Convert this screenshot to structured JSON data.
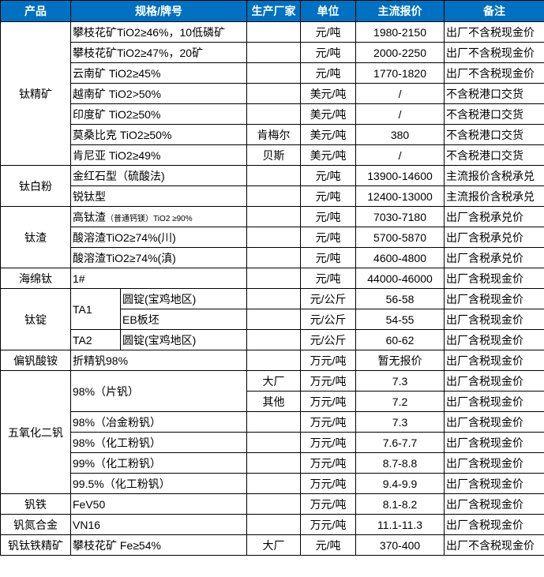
{
  "header": {
    "product": "产品",
    "spec": "规格/牌号",
    "maker": "生产厂家",
    "unit": "单位",
    "price": "主流报价",
    "note": "备注"
  },
  "header_color": "#0070C0",
  "groups": [
    {
      "product": "钛精矿",
      "rows": [
        {
          "spec": "攀枝花矿TiO2≥46%，10低磷矿",
          "maker": "",
          "unit": "元/吨",
          "price": "1980-2150",
          "note": "出厂不含税现金价"
        },
        {
          "spec": "攀枝花矿TiO2≥47%，20矿",
          "maker": "",
          "unit": "元/吨",
          "price": "2000-2250",
          "note": "出厂不含税现金价"
        },
        {
          "spec": "云南矿 TiO2≥45%",
          "maker": "",
          "unit": "元/吨",
          "price": "1770-1820",
          "note": "出厂不含税现金价"
        },
        {
          "spec": "越南矿 TiO2>50%",
          "maker": "",
          "unit": "美元/吨",
          "price": "/",
          "note": "不含税港口交货"
        },
        {
          "spec": "印度矿 TiO2≥50%",
          "maker": "",
          "unit": "美元/吨",
          "price": "/",
          "note": "不含税港口交货"
        },
        {
          "spec": "莫桑比克 TiO2≥50%",
          "maker": "肯梅尔",
          "unit": "美元/吨",
          "price": "380",
          "note": "不含税港口交货"
        },
        {
          "spec": "肯尼亚 TiO2≥49%",
          "maker": "贝斯",
          "unit": "美元/吨",
          "price": "/",
          "note": "不含税港口交货"
        }
      ]
    },
    {
      "product": "钛白粉",
      "rows": [
        {
          "spec": "金红石型（硫酸法)",
          "maker": "",
          "unit": "元/吨",
          "price": "13900-14600",
          "note": "主流报价含税承兑"
        },
        {
          "spec": "锐钛型",
          "maker": "",
          "unit": "元/吨",
          "price": "12400-13000",
          "note": "主流报价含税承兑"
        }
      ]
    },
    {
      "product": "钛渣",
      "rows": [
        {
          "spec": "高钛渣",
          "spec_small": "（普通钙镁）TiO2 ≥90%",
          "maker": "",
          "unit": "元/吨",
          "price": "7030-7180",
          "note": "出厂含税承兑价"
        },
        {
          "spec": "酸溶渣TiO2≥74%(川)",
          "maker": "",
          "unit": "元/吨",
          "price": "5700-5870",
          "note": "出厂含税承兑价"
        },
        {
          "spec": "酸溶渣TiO2≥74%(滇)",
          "maker": "",
          "unit": "元/吨",
          "price": "4600-4800",
          "note": "出厂含税承兑价"
        }
      ]
    },
    {
      "product": "海绵钛",
      "rows": [
        {
          "spec": "1#",
          "maker": "",
          "unit": "元/吨",
          "price": "44000-46000",
          "note": "出厂含税现金价"
        }
      ]
    },
    {
      "product": "钛锭",
      "rows": [
        {
          "grade": "TA1",
          "spec": "圆锭(宝鸡地区)",
          "maker": "",
          "unit": "元/公斤",
          "price": "56-58",
          "note": "出厂含税现金价"
        },
        {
          "grade": null,
          "spec": "EB板坯",
          "maker": "",
          "unit": "元/公斤",
          "price": "54-55",
          "note": "出厂含税现金价"
        },
        {
          "grade": "TA2",
          "spec": "圆锭(宝鸡地区)",
          "maker": "",
          "unit": "元/公斤",
          "price": "60-62",
          "note": "出厂含税现金价"
        }
      ]
    },
    {
      "product": "偏钒酸铵",
      "rows": [
        {
          "spec": "折精钒98%",
          "maker": "",
          "unit": "万元/吨",
          "price": "暂无报价",
          "note": "出厂含税现金价"
        }
      ]
    },
    {
      "product": "五氧化二钒",
      "rows": [
        {
          "spec": "98%（片钒）",
          "maker": "大厂",
          "unit": "万元/吨",
          "price": "7.3",
          "note": "出厂含税现金价"
        },
        {
          "spec": null,
          "maker": "其他",
          "unit": "万元/吨",
          "price": "7.2",
          "note": "出厂含税现金价"
        },
        {
          "spec": "98%（冶金粉钒）",
          "maker": "",
          "unit": "万元/吨",
          "price": "7.3",
          "note": "出厂含税现金价"
        },
        {
          "spec": "98%（化工粉钒）",
          "maker": "",
          "unit": "万元/吨",
          "price": "7.6-7.7",
          "note": "出厂含税现金价"
        },
        {
          "spec": "99%（化工粉钒）",
          "maker": "",
          "unit": "万元/吨",
          "price": "8.7-8.8",
          "note": "出厂含税现金价"
        },
        {
          "spec": "99.5%（化工粉钒）",
          "maker": "",
          "unit": "万元/吨",
          "price": "9.4-9.9",
          "note": "出厂含税现金价"
        }
      ]
    },
    {
      "product": "钒铁",
      "rows": [
        {
          "spec": "FeV50",
          "maker": "",
          "unit": "万元/吨",
          "price": "8.1-8.2",
          "note": "出厂含税现金价"
        }
      ]
    },
    {
      "product": "钒氮合金",
      "rows": [
        {
          "spec": "VN16",
          "maker": "",
          "unit": "万元/吨",
          "price": "11.1-11.3",
          "note": "出厂含税现金价"
        }
      ]
    },
    {
      "product": "钒钛铁精矿",
      "rows": [
        {
          "spec": "攀枝花矿 Fe≥54%",
          "maker": "大厂",
          "unit": "元/吨",
          "price": "370-400",
          "note": "出厂不含税现金价"
        }
      ]
    }
  ]
}
